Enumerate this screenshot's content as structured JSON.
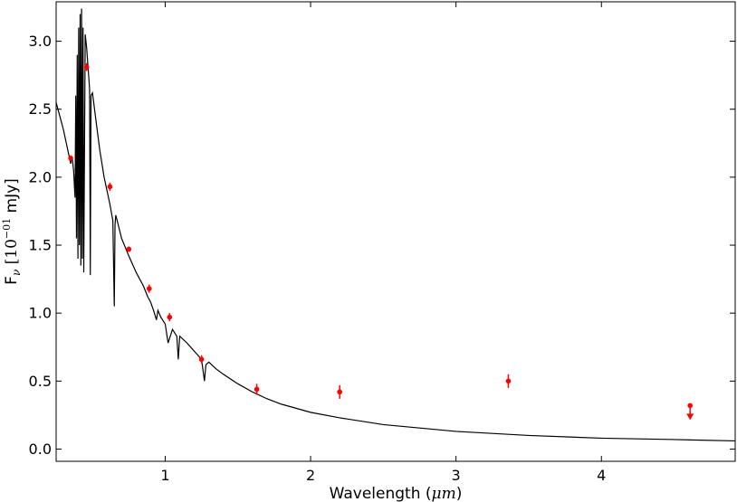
{
  "chart_data": {
    "type": "scatter",
    "title": "",
    "xlabel_main": "Wavelength (",
    "xlabel_unit": "μm",
    "xlabel_close": ")",
    "ylabel_main": "F",
    "ylabel_sub": "ν",
    "ylabel_bracket": " [10",
    "ylabel_exp": "−01",
    "ylabel_unit": " mJy]",
    "xlim": [
      0.25,
      4.92
    ],
    "ylim": [
      -0.09,
      3.29
    ],
    "xticks": [
      {
        "value": 1,
        "label": "1"
      },
      {
        "value": 2,
        "label": "2"
      },
      {
        "value": 3,
        "label": "3"
      },
      {
        "value": 4,
        "label": "4"
      }
    ],
    "yticks": [
      {
        "value": 0.0,
        "label": "0.0"
      },
      {
        "value": 0.5,
        "label": "0.5"
      },
      {
        "value": 1.0,
        "label": "1.0"
      },
      {
        "value": 1.5,
        "label": "1.5"
      },
      {
        "value": 2.0,
        "label": "2.0"
      },
      {
        "value": 2.5,
        "label": "2.5"
      },
      {
        "value": 3.0,
        "label": "3.0"
      }
    ],
    "grid": false,
    "series": [
      {
        "kind": "model-spectrum",
        "color": "#000000",
        "x": [
          0.25,
          0.3,
          0.35,
          0.36,
          0.37,
          0.38,
          0.385,
          0.39,
          0.395,
          0.4,
          0.405,
          0.41,
          0.415,
          0.42,
          0.425,
          0.43,
          0.435,
          0.44,
          0.45,
          0.46,
          0.47,
          0.48,
          0.485,
          0.49,
          0.5,
          0.52,
          0.55,
          0.58,
          0.62,
          0.64,
          0.65,
          0.655,
          0.66,
          0.67,
          0.7,
          0.75,
          0.8,
          0.85,
          0.88,
          0.9,
          0.92,
          0.94,
          0.95,
          0.97,
          1.0,
          1.02,
          1.05,
          1.08,
          1.09,
          1.1,
          1.15,
          1.2,
          1.25,
          1.27,
          1.28,
          1.3,
          1.35,
          1.4,
          1.5,
          1.6,
          1.7,
          1.8,
          2.0,
          2.2,
          2.5,
          2.8,
          3.0,
          3.5,
          4.0,
          4.5,
          4.92
        ],
        "y": [
          2.55,
          2.35,
          2.1,
          2.15,
          2.05,
          1.85,
          2.6,
          1.55,
          2.9,
          1.4,
          3.1,
          1.5,
          3.2,
          1.35,
          3.24,
          1.4,
          3.1,
          1.3,
          3.05,
          2.95,
          2.8,
          2.65,
          1.28,
          2.6,
          2.62,
          2.45,
          2.2,
          2.0,
          1.8,
          1.68,
          1.05,
          1.65,
          1.72,
          1.68,
          1.55,
          1.42,
          1.3,
          1.2,
          1.12,
          1.08,
          1.02,
          0.95,
          1.02,
          0.97,
          0.92,
          0.78,
          0.88,
          0.83,
          0.66,
          0.83,
          0.78,
          0.72,
          0.66,
          0.5,
          0.62,
          0.64,
          0.59,
          0.55,
          0.48,
          0.42,
          0.37,
          0.33,
          0.27,
          0.23,
          0.18,
          0.15,
          0.13,
          0.1,
          0.08,
          0.07,
          0.06
        ]
      },
      {
        "kind": "photometry",
        "color": "#ff0000",
        "points": [
          {
            "x": 0.35,
            "y": 2.14,
            "err": 0.02
          },
          {
            "x": 0.46,
            "y": 2.81,
            "err": 0.03
          },
          {
            "x": 0.62,
            "y": 1.93,
            "err": 0.03
          },
          {
            "x": 0.75,
            "y": 1.47,
            "err": 0.02
          },
          {
            "x": 0.89,
            "y": 1.18,
            "err": 0.03
          },
          {
            "x": 1.03,
            "y": 0.97,
            "err": 0.03
          },
          {
            "x": 1.25,
            "y": 0.66,
            "err": 0.03
          },
          {
            "x": 1.63,
            "y": 0.44,
            "err": 0.04
          },
          {
            "x": 2.2,
            "y": 0.42,
            "err": 0.05
          },
          {
            "x": 3.36,
            "y": 0.5,
            "err": 0.05
          },
          {
            "x": 4.61,
            "y": 0.32,
            "upper_limit": true
          }
        ]
      }
    ]
  }
}
